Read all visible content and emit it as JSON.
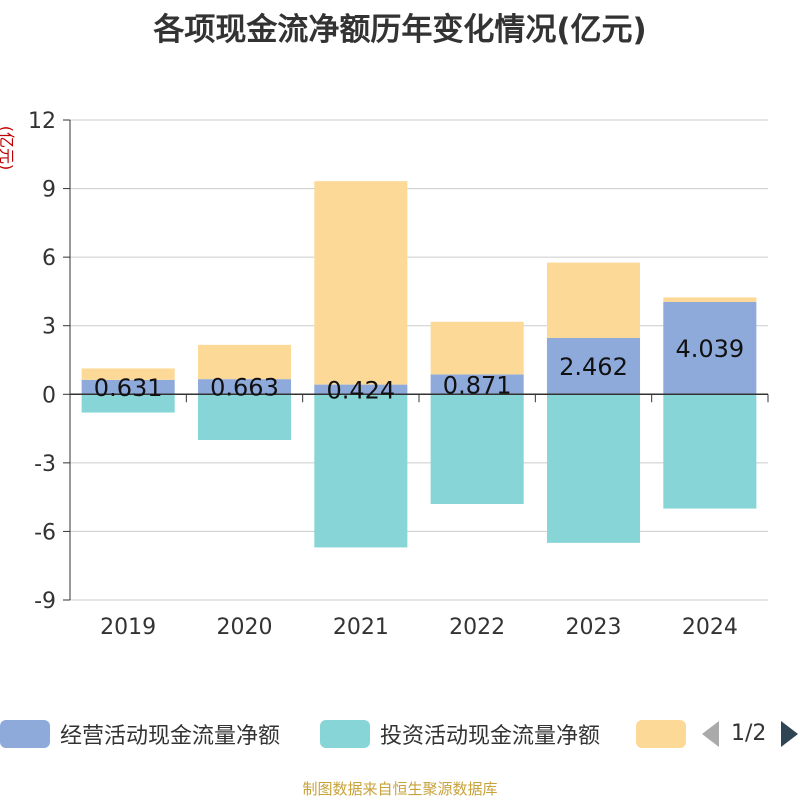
{
  "title": "各项现金流净额历年变化情况(亿元)",
  "source": "制图数据来自恒生聚源数据库",
  "legend": {
    "pager": "1/2"
  },
  "chart_data": {
    "type": "bar",
    "stacked": true,
    "unit": "(亿元)",
    "categories": [
      "2019",
      "2020",
      "2021",
      "2022",
      "2023",
      "2024"
    ],
    "ylim": [
      -9,
      12
    ],
    "yticks": [
      12,
      9,
      6,
      3,
      0,
      -3,
      -6,
      -9
    ],
    "grid": true,
    "legend_position": "bottom",
    "series": [
      {
        "name": "经营活动现金流量净额",
        "color": "#8eaadb",
        "values": [
          0.631,
          0.663,
          0.424,
          0.871,
          2.462,
          4.039
        ],
        "labels": [
          "0.631",
          "0.663",
          "0.424",
          "0.871",
          "2.462",
          "4.039"
        ]
      },
      {
        "name": "投资活动现金流量净额",
        "color": "#87d5d6",
        "values": [
          -0.8,
          -2.0,
          -6.7,
          -4.8,
          -6.5,
          -5.0
        ]
      },
      {
        "name": "",
        "color": "#fdd998",
        "values": [
          0.5,
          1.5,
          8.9,
          2.3,
          3.3,
          0.2
        ]
      }
    ]
  }
}
